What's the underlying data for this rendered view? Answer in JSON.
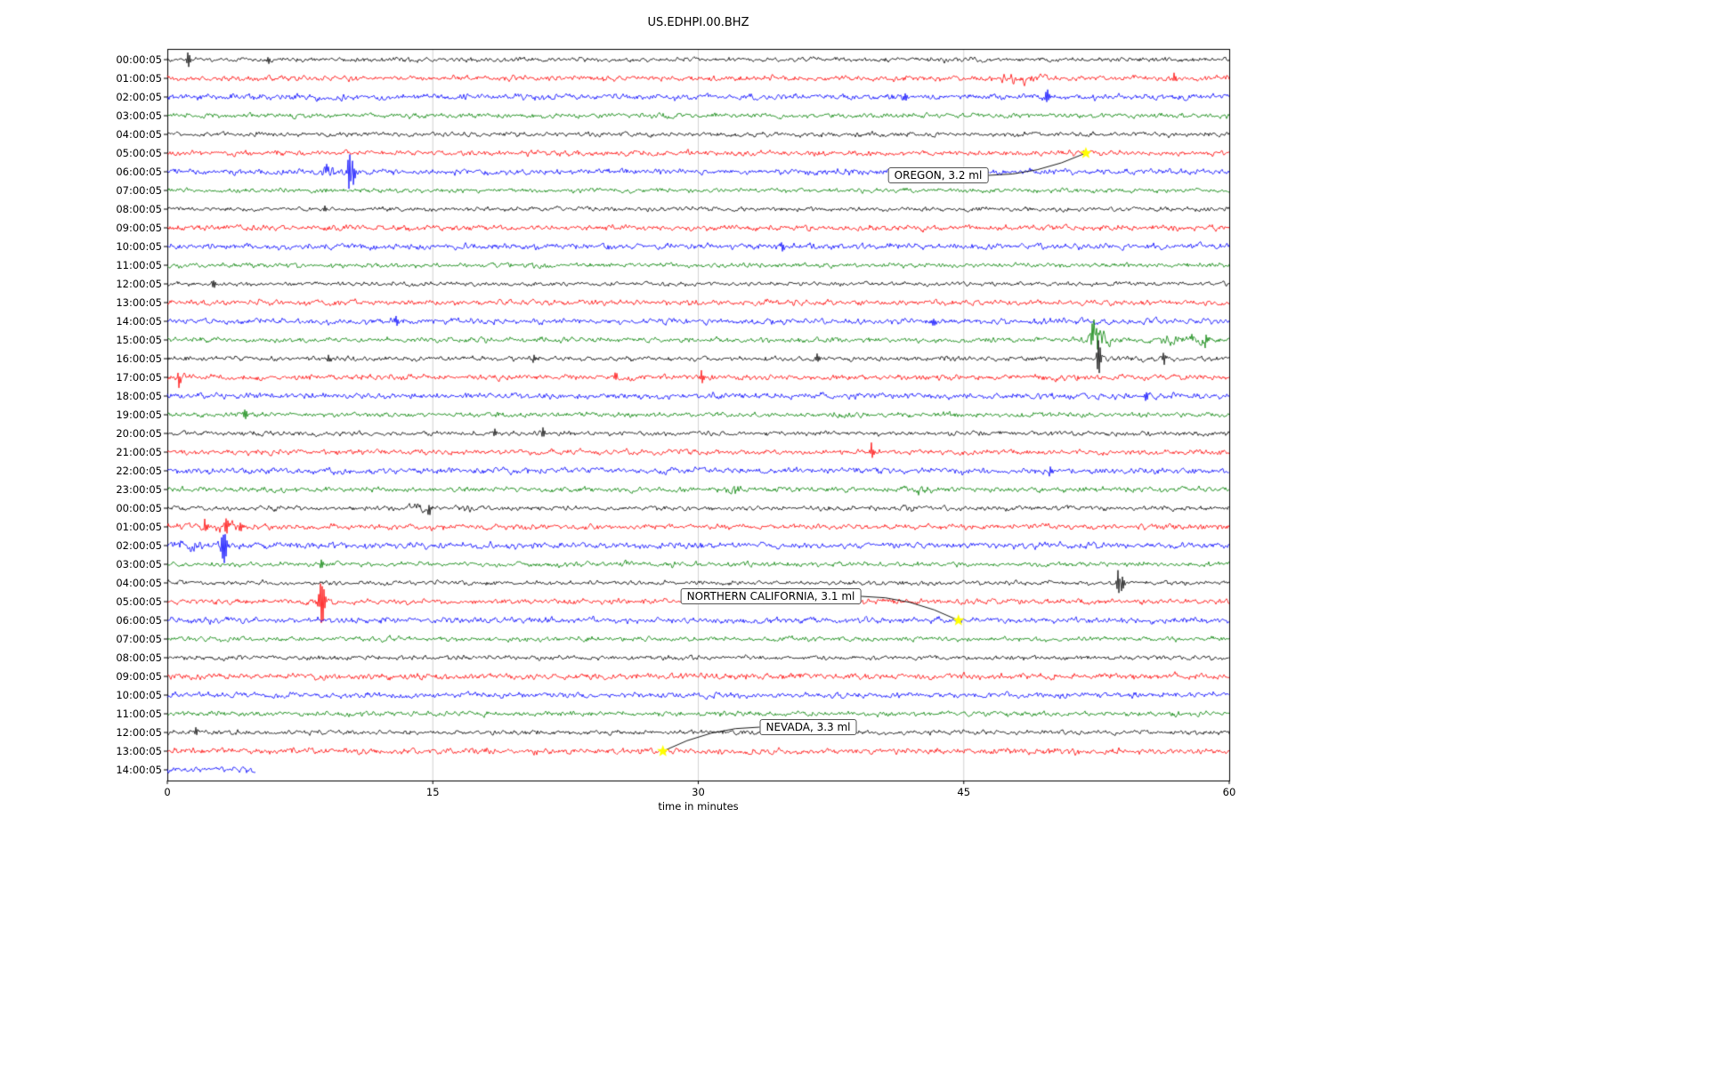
{
  "title": "US.EDHPI.00.BHZ",
  "axis": {
    "xlabel": "time in minutes",
    "xticks": [
      0,
      15,
      30,
      45,
      60
    ],
    "xlim": [
      0,
      60
    ]
  },
  "colors": {
    "black": "#000000",
    "red": "#ff0000",
    "blue": "#0000ff",
    "green": "#008000",
    "star": "#ffff00",
    "grid": "#c8c8c8",
    "border": "#000000"
  },
  "chart_data": {
    "type": "line",
    "subtype": "helicorder-seismogram",
    "station": "US.EDHPI.00.BHZ",
    "description": "24-hour drum-style seismogram; one 60-minute noise trace per hour, colors cycling black/red/blue/green; amplitudes in pixels, bursts = [start_min,end_min,gain], spikes = [minute,peak_px]; last trace truncated at 5 minutes.",
    "rows": [
      {
        "label": "00:00:05",
        "color": "black",
        "amp": 1.5,
        "seed": 101,
        "bursts": [
          [
            43.5,
            44.6,
            1.6
          ]
        ],
        "spikes": [
          [
            1.05,
            8
          ],
          [
            5.6,
            4
          ]
        ]
      },
      {
        "label": "01:00:05",
        "color": "red",
        "amp": 1.8,
        "seed": 102,
        "bursts": [
          [
            46.3,
            50.2,
            2.3
          ]
        ],
        "spikes": [
          [
            56.8,
            5
          ]
        ]
      },
      {
        "label": "02:00:05",
        "color": "blue",
        "amp": 2.0,
        "seed": 103,
        "bursts": [
          [
            27.5,
            30.0,
            1.3
          ]
        ],
        "spikes": [
          [
            41.6,
            4
          ],
          [
            49.6,
            -8
          ]
        ]
      },
      {
        "label": "03:00:05",
        "color": "green",
        "amp": 1.6,
        "seed": 104,
        "bursts": [],
        "spikes": []
      },
      {
        "label": "04:00:05",
        "color": "black",
        "amp": 1.5,
        "seed": 105,
        "bursts": [
          [
            4.4,
            5.6,
            1.5
          ]
        ],
        "spikes": []
      },
      {
        "label": "05:00:05",
        "color": "red",
        "amp": 1.7,
        "seed": 106,
        "bursts": [],
        "spikes": []
      },
      {
        "label": "06:00:05",
        "color": "blue",
        "amp": 1.9,
        "seed": 107,
        "bursts": [
          [
            8.0,
            11.0,
            2.2
          ]
        ],
        "spikes": [
          [
            10.15,
            -22
          ],
          [
            10.35,
            15
          ],
          [
            8.9,
            6
          ]
        ]
      },
      {
        "label": "07:00:05",
        "color": "green",
        "amp": 1.5,
        "seed": 108,
        "bursts": [],
        "spikes": []
      },
      {
        "label": "08:00:05",
        "color": "black",
        "amp": 1.5,
        "seed": 109,
        "bursts": [],
        "spikes": [
          [
            8.8,
            4
          ]
        ]
      },
      {
        "label": "09:00:05",
        "color": "red",
        "amp": 1.9,
        "seed": 110,
        "bursts": [],
        "spikes": []
      },
      {
        "label": "10:00:05",
        "color": "blue",
        "amp": 2.0,
        "seed": 111,
        "bursts": [],
        "spikes": [
          [
            34.6,
            5
          ]
        ]
      },
      {
        "label": "11:00:05",
        "color": "green",
        "amp": 1.6,
        "seed": 112,
        "bursts": [],
        "spikes": []
      },
      {
        "label": "12:00:05",
        "color": "black",
        "amp": 1.4,
        "seed": 113,
        "bursts": [],
        "spikes": [
          [
            2.5,
            4
          ]
        ]
      },
      {
        "label": "13:00:05",
        "color": "red",
        "amp": 1.8,
        "seed": 114,
        "bursts": [],
        "spikes": []
      },
      {
        "label": "14:00:05",
        "color": "blue",
        "amp": 1.9,
        "seed": 115,
        "bursts": [],
        "spikes": [
          [
            12.8,
            5
          ],
          [
            43.2,
            4
          ]
        ]
      },
      {
        "label": "15:00:05",
        "color": "green",
        "amp": 1.7,
        "seed": 116,
        "bursts": [
          [
            51.3,
            53.8,
            4.5
          ],
          [
            54.8,
            60.0,
            2.2
          ],
          [
            57.6,
            59.4,
            2.6
          ]
        ],
        "spikes": [
          [
            52.2,
            -14
          ],
          [
            52.4,
            12
          ],
          [
            58.6,
            7
          ]
        ]
      },
      {
        "label": "16:00:05",
        "color": "black",
        "amp": 1.6,
        "seed": 117,
        "bursts": [
          [
            43.3,
            45.2,
            1.6
          ],
          [
            52.0,
            57.0,
            1.5
          ]
        ],
        "spikes": [
          [
            9.0,
            5
          ],
          [
            20.6,
            4
          ],
          [
            36.6,
            5
          ],
          [
            52.5,
            20
          ],
          [
            56.2,
            6
          ]
        ]
      },
      {
        "label": "17:00:05",
        "color": "red",
        "amp": 1.8,
        "seed": 118,
        "bursts": [
          [
            0.0,
            1.2,
            1.9
          ]
        ],
        "spikes": [
          [
            0.5,
            6
          ],
          [
            25.2,
            5
          ],
          [
            30.1,
            6
          ]
        ]
      },
      {
        "label": "18:00:05",
        "color": "blue",
        "amp": 2.0,
        "seed": 119,
        "bursts": [],
        "spikes": [
          [
            55.2,
            6
          ]
        ]
      },
      {
        "label": "19:00:05",
        "color": "green",
        "amp": 1.6,
        "seed": 120,
        "bursts": [
          [
            37.4,
            39.2,
            1.6
          ],
          [
            51.3,
            52.6,
            1.5
          ]
        ],
        "spikes": [
          [
            4.3,
            6
          ]
        ]
      },
      {
        "label": "20:00:05",
        "color": "black",
        "amp": 1.5,
        "seed": 121,
        "bursts": [
          [
            43.4,
            45.0,
            1.5
          ]
        ],
        "spikes": [
          [
            18.4,
            5
          ],
          [
            21.1,
            5
          ]
        ]
      },
      {
        "label": "21:00:05",
        "color": "red",
        "amp": 1.7,
        "seed": 122,
        "bursts": [],
        "spikes": [
          [
            39.7,
            7
          ]
        ]
      },
      {
        "label": "22:00:05",
        "color": "blue",
        "amp": 2.0,
        "seed": 123,
        "bursts": [
          [
            44.4,
            45.6,
            1.7
          ]
        ],
        "spikes": [
          [
            49.8,
            4
          ]
        ]
      },
      {
        "label": "23:00:05",
        "color": "green",
        "amp": 1.7,
        "seed": 124,
        "bursts": [
          [
            31.3,
            33.2,
            2.2
          ],
          [
            41.8,
            43.6,
            2.0
          ]
        ],
        "spikes": []
      },
      {
        "label": "00:00:05",
        "color": "black",
        "amp": 1.5,
        "seed": 125,
        "bursts": [
          [
            4.8,
            6.6,
            2.0
          ],
          [
            13.2,
            15.2,
            2.4
          ],
          [
            16.3,
            17.8,
            1.9
          ],
          [
            41.3,
            42.6,
            1.8
          ]
        ],
        "spikes": [
          [
            14.7,
            6
          ]
        ]
      },
      {
        "label": "01:00:05",
        "color": "red",
        "amp": 1.8,
        "seed": 126,
        "bursts": [
          [
            1.4,
            4.6,
            2.4
          ]
        ],
        "spikes": [
          [
            2.0,
            7
          ],
          [
            3.2,
            9
          ],
          [
            4.0,
            6
          ]
        ]
      },
      {
        "label": "02:00:05",
        "color": "blue",
        "amp": 2.0,
        "seed": 127,
        "bursts": [
          [
            0.0,
            2.6,
            2.8
          ],
          [
            2.7,
            3.8,
            2.0
          ]
        ],
        "spikes": [
          [
            3.0,
            -16
          ],
          [
            3.15,
            11
          ]
        ]
      },
      {
        "label": "03:00:05",
        "color": "green",
        "amp": 1.6,
        "seed": 128,
        "bursts": [
          [
            24.8,
            26.2,
            1.5
          ],
          [
            27.8,
            29.2,
            1.4
          ]
        ],
        "spikes": [
          [
            8.6,
            5
          ]
        ]
      },
      {
        "label": "04:00:05",
        "color": "black",
        "amp": 1.5,
        "seed": 129,
        "bursts": [],
        "spikes": [
          [
            53.6,
            13
          ],
          [
            53.8,
            -9
          ]
        ]
      },
      {
        "label": "05:00:05",
        "color": "red",
        "amp": 1.7,
        "seed": 130,
        "bursts": [
          [
            7.7,
            9.6,
            2.6
          ]
        ],
        "spikes": [
          [
            8.55,
            18
          ],
          [
            8.72,
            -14
          ]
        ]
      },
      {
        "label": "06:00:05",
        "color": "blue",
        "amp": 1.9,
        "seed": 131,
        "bursts": [],
        "spikes": []
      },
      {
        "label": "07:00:05",
        "color": "green",
        "amp": 1.6,
        "seed": 132,
        "bursts": [],
        "spikes": []
      },
      {
        "label": "08:00:05",
        "color": "black",
        "amp": 1.5,
        "seed": 133,
        "bursts": [],
        "spikes": []
      },
      {
        "label": "09:00:05",
        "color": "red",
        "amp": 2.0,
        "seed": 134,
        "bursts": [],
        "spikes": []
      },
      {
        "label": "10:00:05",
        "color": "blue",
        "amp": 1.9,
        "seed": 135,
        "bursts": [
          [
            13.4,
            14.6,
            1.4
          ]
        ],
        "spikes": []
      },
      {
        "label": "11:00:05",
        "color": "green",
        "amp": 1.7,
        "seed": 136,
        "bursts": [],
        "spikes": []
      },
      {
        "label": "12:00:05",
        "color": "black",
        "amp": 1.5,
        "seed": 137,
        "bursts": [],
        "spikes": [
          [
            1.5,
            4
          ]
        ]
      },
      {
        "label": "13:00:05",
        "color": "red",
        "amp": 2.0,
        "seed": 138,
        "bursts": [],
        "spikes": []
      },
      {
        "label": "14:00:05",
        "color": "blue",
        "amp": 2.1,
        "seed": 139,
        "bursts": [],
        "spikes": [],
        "end": 5.0
      }
    ],
    "events": [
      {
        "label": "OREGON, 3.2 ml",
        "row_index": 5,
        "minute": 51.9,
        "box_cx": 1054,
        "box_cy": 197
      },
      {
        "label": "NORTHERN CALIFORNIA, 3.1 ml",
        "row_index": 30,
        "minute": 44.7,
        "box_cx": 866,
        "box_cy": 670
      },
      {
        "label": "NEVADA, 3.3 ml",
        "row_index": 37,
        "minute": 28.0,
        "box_cx": 908,
        "box_cy": 817
      }
    ]
  }
}
